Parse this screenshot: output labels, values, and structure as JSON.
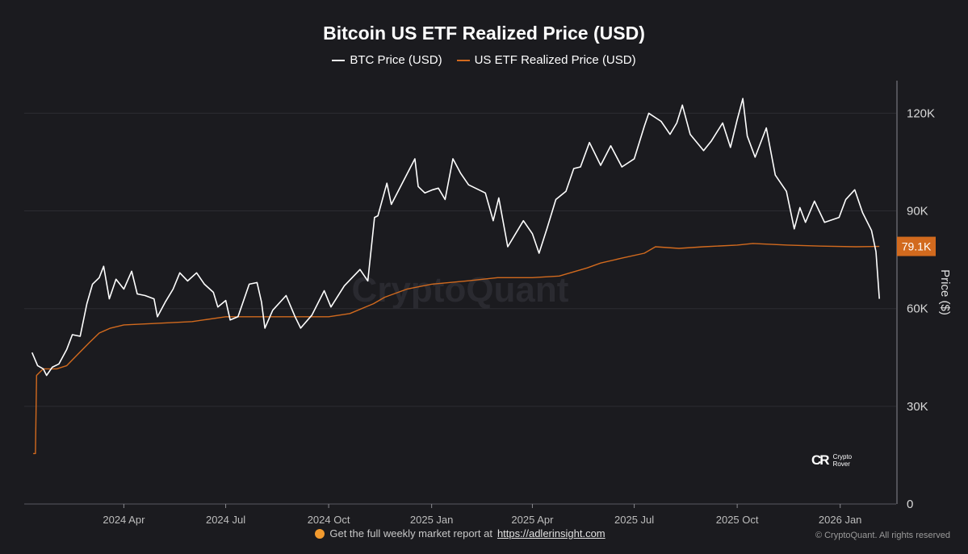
{
  "chart_data": {
    "type": "line",
    "title": "Bitcoin US ETF Realized Price (USD)",
    "ylabel": "Price ($)",
    "ylim": [
      0,
      130000
    ],
    "yticks": [
      0,
      30000,
      60000,
      90000,
      120000
    ],
    "ytick_labels": [
      "0",
      "30K",
      "60K",
      "90K",
      "120K"
    ],
    "xlim": [
      "2024-01-03",
      "2026-02-20"
    ],
    "xticks": [
      "2024-04-01",
      "2024-07-01",
      "2024-10-01",
      "2025-01-01",
      "2025-04-01",
      "2025-07-01",
      "2025-10-01",
      "2026-01-01"
    ],
    "xtick_labels": [
      "2024 Apr",
      "2024 Jul",
      "2024 Oct",
      "2025 Jan",
      "2025 Apr",
      "2025 Jul",
      "2025 Oct",
      "2026 Jan"
    ],
    "grid": true,
    "legend_position": "top-center",
    "current_value_label": "79.1K",
    "watermark": "CryptoQuant",
    "series": [
      {
        "name": "BTC Price (USD)",
        "color": "#ffffff",
        "points": [
          [
            "2024-01-10",
            46500
          ],
          [
            "2024-01-15",
            42500
          ],
          [
            "2024-01-20",
            41500
          ],
          [
            "2024-01-23",
            39500
          ],
          [
            "2024-01-28",
            42000
          ],
          [
            "2024-02-03",
            43000
          ],
          [
            "2024-02-10",
            47500
          ],
          [
            "2024-02-15",
            52000
          ],
          [
            "2024-02-22",
            51500
          ],
          [
            "2024-02-28",
            61500
          ],
          [
            "2024-03-04",
            67500
          ],
          [
            "2024-03-10",
            69500
          ],
          [
            "2024-03-14",
            73000
          ],
          [
            "2024-03-19",
            63000
          ],
          [
            "2024-03-25",
            69000
          ],
          [
            "2024-04-01",
            66000
          ],
          [
            "2024-04-08",
            71500
          ],
          [
            "2024-04-13",
            64500
          ],
          [
            "2024-04-20",
            64000
          ],
          [
            "2024-04-28",
            63000
          ],
          [
            "2024-05-01",
            57500
          ],
          [
            "2024-05-08",
            62000
          ],
          [
            "2024-05-15",
            66000
          ],
          [
            "2024-05-21",
            71000
          ],
          [
            "2024-05-28",
            68500
          ],
          [
            "2024-06-05",
            71000
          ],
          [
            "2024-06-12",
            67500
          ],
          [
            "2024-06-20",
            65000
          ],
          [
            "2024-06-24",
            60500
          ],
          [
            "2024-07-01",
            62500
          ],
          [
            "2024-07-05",
            56500
          ],
          [
            "2024-07-12",
            57500
          ],
          [
            "2024-07-22",
            67500
          ],
          [
            "2024-07-29",
            68000
          ],
          [
            "2024-08-02",
            62000
          ],
          [
            "2024-08-05",
            54000
          ],
          [
            "2024-08-12",
            59500
          ],
          [
            "2024-08-24",
            64000
          ],
          [
            "2024-09-01",
            57500
          ],
          [
            "2024-09-06",
            54000
          ],
          [
            "2024-09-16",
            58000
          ],
          [
            "2024-09-27",
            65500
          ],
          [
            "2024-10-03",
            60500
          ],
          [
            "2024-10-15",
            67000
          ],
          [
            "2024-10-29",
            72000
          ],
          [
            "2024-11-05",
            68500
          ],
          [
            "2024-11-11",
            88000
          ],
          [
            "2024-11-14",
            88500
          ],
          [
            "2024-11-22",
            98500
          ],
          [
            "2024-11-26",
            92000
          ],
          [
            "2024-12-05",
            98000
          ],
          [
            "2024-12-17",
            106000
          ],
          [
            "2024-12-20",
            97500
          ],
          [
            "2024-12-26",
            95500
          ],
          [
            "2025-01-02",
            96500
          ],
          [
            "2025-01-07",
            97000
          ],
          [
            "2025-01-13",
            93500
          ],
          [
            "2025-01-20",
            106000
          ],
          [
            "2025-01-27",
            101500
          ],
          [
            "2025-02-03",
            98000
          ],
          [
            "2025-02-18",
            95500
          ],
          [
            "2025-02-25",
            87000
          ],
          [
            "2025-03-02",
            94000
          ],
          [
            "2025-03-10",
            79000
          ],
          [
            "2025-03-24",
            87000
          ],
          [
            "2025-04-01",
            83000
          ],
          [
            "2025-04-07",
            77000
          ],
          [
            "2025-04-14",
            84500
          ],
          [
            "2025-04-22",
            93500
          ],
          [
            "2025-05-01",
            96000
          ],
          [
            "2025-05-08",
            103000
          ],
          [
            "2025-05-14",
            103500
          ],
          [
            "2025-05-22",
            111000
          ],
          [
            "2025-06-01",
            104000
          ],
          [
            "2025-06-10",
            110000
          ],
          [
            "2025-06-20",
            103500
          ],
          [
            "2025-07-01",
            106000
          ],
          [
            "2025-07-10",
            116000
          ],
          [
            "2025-07-14",
            120000
          ],
          [
            "2025-07-25",
            117500
          ],
          [
            "2025-08-02",
            113500
          ],
          [
            "2025-08-08",
            117000
          ],
          [
            "2025-08-13",
            122500
          ],
          [
            "2025-08-20",
            113500
          ],
          [
            "2025-09-01",
            108500
          ],
          [
            "2025-09-08",
            111500
          ],
          [
            "2025-09-18",
            117000
          ],
          [
            "2025-09-25",
            109500
          ],
          [
            "2025-10-01",
            118000
          ],
          [
            "2025-10-06",
            124500
          ],
          [
            "2025-10-10",
            113000
          ],
          [
            "2025-10-17",
            106500
          ],
          [
            "2025-10-27",
            115500
          ],
          [
            "2025-11-04",
            101000
          ],
          [
            "2025-11-14",
            96000
          ],
          [
            "2025-11-21",
            84500
          ],
          [
            "2025-11-26",
            91000
          ],
          [
            "2025-12-01",
            86500
          ],
          [
            "2025-12-09",
            93000
          ],
          [
            "2025-12-18",
            86500
          ],
          [
            "2025-12-31",
            88000
          ],
          [
            "2026-01-06",
            93500
          ],
          [
            "2026-01-14",
            96500
          ],
          [
            "2026-01-21",
            89500
          ],
          [
            "2026-01-29",
            84000
          ],
          [
            "2026-02-02",
            77500
          ],
          [
            "2026-02-05",
            63000
          ]
        ]
      },
      {
        "name": "US ETF Realized Price (USD)",
        "color": "#d26a1e",
        "points": [
          [
            "2024-01-11",
            15500
          ],
          [
            "2024-01-13",
            15500
          ],
          [
            "2024-01-14",
            39500
          ],
          [
            "2024-01-20",
            41500
          ],
          [
            "2024-02-01",
            41500
          ],
          [
            "2024-02-10",
            42500
          ],
          [
            "2024-02-20",
            46000
          ],
          [
            "2024-03-01",
            49500
          ],
          [
            "2024-03-10",
            52500
          ],
          [
            "2024-03-20",
            54000
          ],
          [
            "2024-04-01",
            55000
          ],
          [
            "2024-05-01",
            55500
          ],
          [
            "2024-06-01",
            56000
          ],
          [
            "2024-07-01",
            57500
          ],
          [
            "2024-08-01",
            57500
          ],
          [
            "2024-09-01",
            57500
          ],
          [
            "2024-10-01",
            57500
          ],
          [
            "2024-10-20",
            58500
          ],
          [
            "2024-11-10",
            61500
          ],
          [
            "2024-11-20",
            63500
          ],
          [
            "2024-12-10",
            66000
          ],
          [
            "2025-01-01",
            67500
          ],
          [
            "2025-02-01",
            68500
          ],
          [
            "2025-03-01",
            69500
          ],
          [
            "2025-04-01",
            69500
          ],
          [
            "2025-04-25",
            70000
          ],
          [
            "2025-05-20",
            72500
          ],
          [
            "2025-06-01",
            74000
          ],
          [
            "2025-06-20",
            75500
          ],
          [
            "2025-07-10",
            77000
          ],
          [
            "2025-07-20",
            79000
          ],
          [
            "2025-08-10",
            78500
          ],
          [
            "2025-09-01",
            79000
          ],
          [
            "2025-10-01",
            79500
          ],
          [
            "2025-10-15",
            80000
          ],
          [
            "2025-11-15",
            79500
          ],
          [
            "2025-12-15",
            79200
          ],
          [
            "2026-01-15",
            79000
          ],
          [
            "2026-02-05",
            79100
          ]
        ]
      }
    ]
  },
  "footer": {
    "text": "Get the full weekly market report at",
    "link": "https://adlerinsight.com"
  },
  "copyright": "© CryptoQuant. All rights reserved",
  "logo": {
    "mark": "CR",
    "line1": "Crypto",
    "line2": "Rover"
  }
}
